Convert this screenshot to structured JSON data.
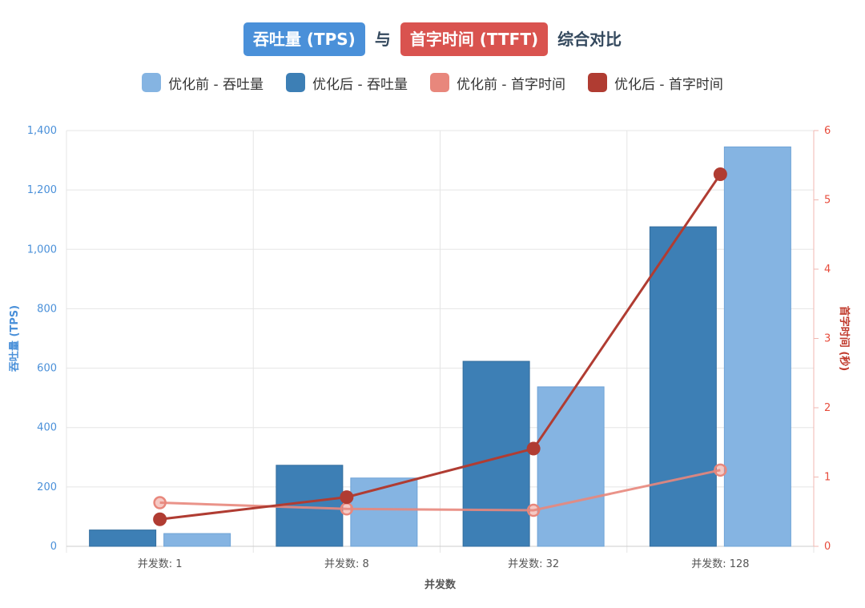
{
  "title": {
    "part1": "吞吐量 (TPS)",
    "part1_color": "#4a90d9",
    "connector": "与",
    "part2": "首字时间 (TTFT)",
    "part2_color": "#d9534f",
    "suffix": "综合对比"
  },
  "legend": [
    {
      "label": "优化前 - 吞吐量",
      "color": "#85b4e2"
    },
    {
      "label": "优化后 - 吞吐量",
      "color": "#3d7fb5"
    },
    {
      "label": "优化前 - 首字时间",
      "color": "#e8877c"
    },
    {
      "label": "优化后 - 首字时间",
      "color": "#b03c32"
    }
  ],
  "chart_data": {
    "type": "bar",
    "title": "吞吐量 (TPS) 与 首字时间 (TTFT) 综合对比",
    "xlabel": "并发数",
    "ylabel": "吞吐量 (TPS)",
    "y2label": "首字时间 (秒)",
    "categories": [
      "并发数: 1",
      "并发数: 8",
      "并发数: 32",
      "并发数: 128"
    ],
    "ylim": [
      0,
      1400
    ],
    "yticks": [
      "0",
      "200",
      "400",
      "600",
      "800",
      "1,000",
      "1,200",
      "1,400"
    ],
    "ytick_values": [
      0,
      200,
      400,
      600,
      800,
      1000,
      1200,
      1400
    ],
    "y2lim": [
      0,
      6
    ],
    "y2ticks": [
      "0",
      "1",
      "2",
      "3",
      "4",
      "5",
      "6"
    ],
    "y2tick_values": [
      0,
      1,
      2,
      3,
      4,
      5,
      6
    ],
    "bar_series": [
      {
        "name": "优化后 - 吞吐量",
        "color": "#3d7fb5",
        "values": [
          55,
          273,
          623,
          1076
        ]
      },
      {
        "name": "优化前 - 吞吐量",
        "color": "#85b4e2",
        "values": [
          43,
          230,
          537,
          1345
        ]
      }
    ],
    "line_series": [
      {
        "name": "优化前 - 首字时间",
        "color": "#e8877c",
        "values": [
          0.63,
          0.54,
          0.52,
          1.1
        ]
      },
      {
        "name": "优化后 - 首字时间",
        "color": "#b03c32",
        "values": [
          0.39,
          0.71,
          1.41,
          5.37
        ]
      }
    ]
  }
}
